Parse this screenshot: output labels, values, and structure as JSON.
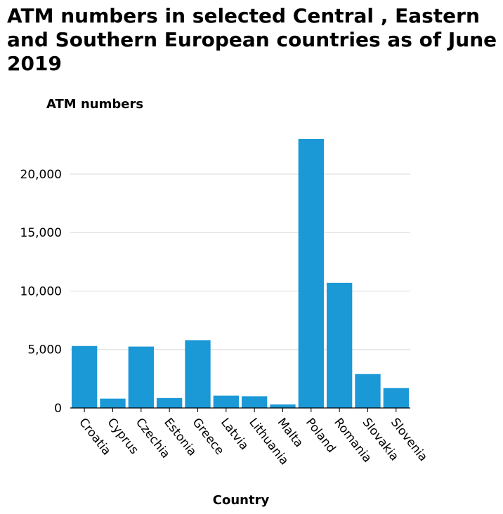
{
  "chart_data": {
    "type": "bar",
    "title": "ATM numbers in selected Central , Eastern and Southern European countries as of June 2019",
    "ylabel": "ATM numbers",
    "xlabel": "Country",
    "categories": [
      "Croatia",
      "Cyprus",
      "Czechia",
      "Estonia",
      "Greece",
      "Latvia",
      "Lithuania",
      "Malta",
      "Poland",
      "Romania",
      "Slovakia",
      "Slovenia"
    ],
    "values": [
      5300,
      800,
      5250,
      850,
      5800,
      1050,
      1000,
      300,
      23000,
      10700,
      2900,
      1700
    ],
    "ylim": [
      0,
      23000
    ],
    "yticks": [
      0,
      5000,
      10000,
      15000,
      20000
    ],
    "ytick_labels": [
      "0",
      "5,000",
      "10,000",
      "15,000",
      "20,000"
    ],
    "grid": true,
    "bar_color": "#1b98d6",
    "grid_color": "#d9d9d9"
  }
}
